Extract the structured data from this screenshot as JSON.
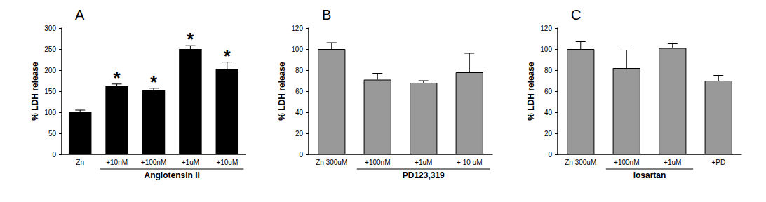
{
  "chart_data": [
    {
      "type": "bar",
      "title": "A",
      "y_label": "% LDH release",
      "categories": [
        "Zn",
        "+10nM",
        "+100nM",
        "+1uM",
        "+10uM"
      ],
      "values": [
        100,
        162,
        152,
        250,
        203
      ],
      "errors": [
        5,
        5,
        5,
        8,
        16
      ],
      "color": "#000000",
      "ylim": [
        0,
        300
      ],
      "yticks": [
        0,
        50,
        100,
        150,
        200,
        250,
        300
      ],
      "grid": false,
      "group_label": {
        "text": "Angiotensin II",
        "categories": [
          "+10nM",
          "+100nM",
          "+1uM",
          "+10uM"
        ]
      },
      "annotations": [
        {
          "category": "+10nM",
          "text": "*"
        },
        {
          "category": "+100nM",
          "text": "*"
        },
        {
          "category": "+1uM",
          "text": "*"
        },
        {
          "category": "+10uM",
          "text": "*"
        }
      ]
    },
    {
      "type": "bar",
      "title": "B",
      "y_label": "% LDH release",
      "categories": [
        "Zn 300uM",
        "+100nM",
        "+1uM",
        "+ 10 uM"
      ],
      "values": [
        100,
        71,
        68,
        78
      ],
      "errors": [
        6,
        6,
        2,
        18
      ],
      "color": "#999999",
      "ylim": [
        0,
        120
      ],
      "yticks": [
        0,
        20,
        40,
        60,
        80,
        100,
        120
      ],
      "grid": false,
      "group_label": {
        "text": "PD123,319",
        "categories": [
          "+100nM",
          "+1uM",
          "+ 10 uM"
        ]
      }
    },
    {
      "type": "bar",
      "title": "C",
      "y_label": "% LDH release",
      "categories": [
        "Zn 300uM",
        "+100nM",
        "+1uM",
        "+PD"
      ],
      "values": [
        100,
        82,
        101,
        70
      ],
      "errors": [
        7,
        17,
        4,
        5
      ],
      "color": "#999999",
      "ylim": [
        0,
        120
      ],
      "yticks": [
        0,
        20,
        40,
        60,
        80,
        100,
        120
      ],
      "grid": false,
      "group_label": {
        "text": "losartan",
        "categories": [
          "+100nM",
          "+1uM"
        ]
      }
    }
  ]
}
